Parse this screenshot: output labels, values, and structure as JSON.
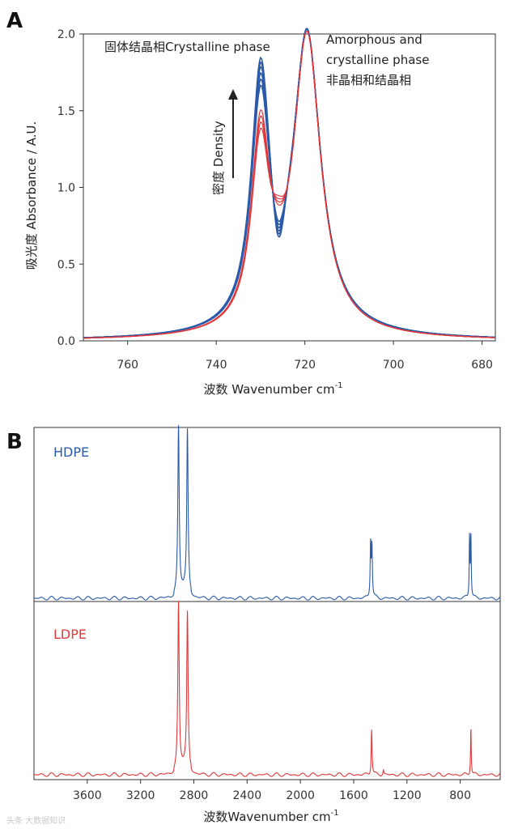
{
  "panels": {
    "a": {
      "letter": "A"
    },
    "b": {
      "letter": "B"
    }
  },
  "watermark": "头条 大数据知识",
  "chart_data": [
    {
      "type": "line",
      "panel": "A",
      "title": "",
      "xlabel": "波数 Wavenumber cm",
      "xlabel_sup": "-1",
      "ylabel": "吸光度 Absorbance / A.U.",
      "xlim": [
        770,
        677
      ],
      "ylim": [
        0,
        2.0
      ],
      "x_ticks": [
        760,
        740,
        720,
        700,
        680
      ],
      "y_ticks": [
        "0.0",
        "0.5",
        "1.0",
        "1.5",
        "2.0"
      ],
      "annotations": {
        "crystalline": "固体结晶相Crystalline phase",
        "amorphous_line1": "Amorphous and",
        "amorphous_line2": "crystalline phase",
        "amorphous_line3": "非晶相和结晶相",
        "density": "密度 Density"
      },
      "peaks": {
        "crystalline_cm1": 730,
        "amorphous_cm1": 719.5,
        "valley_cm1": 726
      },
      "series": [
        {
          "name": "HDPE",
          "color": "#2a5aa8",
          "peak1": [
            1.82,
            1.79,
            1.76,
            1.72,
            1.68,
            1.64
          ],
          "valley": [
            0.65,
            0.67,
            0.69,
            0.71,
            0.73,
            0.75
          ],
          "peak2": 2.0
        },
        {
          "name": "LDPE",
          "color": "#e0393b",
          "peak1": [
            1.49,
            1.45,
            1.41,
            1.37
          ],
          "valley": [
            0.87,
            0.89,
            0.91,
            0.93
          ],
          "peak2": 2.0
        }
      ]
    },
    {
      "type": "line",
      "panel": "B",
      "xlabel": "波数Wavenumber cm",
      "xlabel_sup": "-1",
      "xlim": [
        4000,
        500
      ],
      "x_ticks": [
        3600,
        3200,
        2800,
        2400,
        2000,
        1600,
        1200,
        800
      ],
      "series": [
        {
          "name": "HDPE",
          "color": "#2a5aa8",
          "peaks": [
            {
              "x": 2915,
              "h": 1.0
            },
            {
              "x": 2848,
              "h": 0.97
            },
            {
              "x": 1473,
              "h": 0.33
            },
            {
              "x": 1463,
              "h": 0.31
            },
            {
              "x": 730,
              "h": 0.37
            },
            {
              "x": 720,
              "h": 0.38
            }
          ]
        },
        {
          "name": "LDPE",
          "color": "#e0393b",
          "peaks": [
            {
              "x": 2915,
              "h": 1.0
            },
            {
              "x": 2848,
              "h": 0.93
            },
            {
              "x": 1465,
              "h": 0.28
            },
            {
              "x": 1377,
              "h": 0.03
            },
            {
              "x": 720,
              "h": 0.29
            }
          ]
        }
      ]
    }
  ]
}
